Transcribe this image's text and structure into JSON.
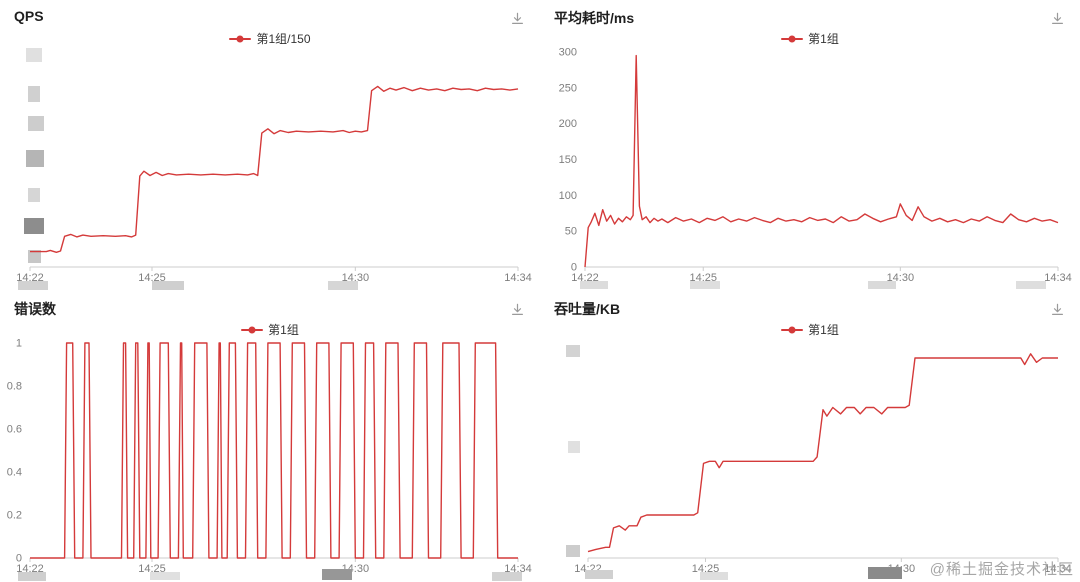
{
  "watermark": "@稀土掘金技术社区",
  "x_note": "x values are minutes after 14:22; time axis spans 14:22 to 14:34",
  "chart_data": [
    {
      "id": "qps",
      "type": "line",
      "title": "QPS",
      "series_name": "第1组/150",
      "color": "#d43a3a",
      "legend_position": "top-center",
      "grid": false,
      "xlim": [
        0,
        12
      ],
      "ylim": [
        0,
        350
      ],
      "margin_left": 30,
      "x_ticks": [
        {
          "v": 0,
          "label": "14:22"
        },
        {
          "v": 3,
          "label": "14:25"
        },
        {
          "v": 8,
          "label": "14:30"
        },
        {
          "v": 12,
          "label": "14:34"
        }
      ],
      "y_ticks": null,
      "y_axis_redacted": true,
      "points": [
        [
          0,
          25
        ],
        [
          0.4,
          25
        ],
        [
          0.5,
          27
        ],
        [
          0.65,
          24
        ],
        [
          0.75,
          26
        ],
        [
          0.85,
          50
        ],
        [
          1.0,
          53
        ],
        [
          1.15,
          49
        ],
        [
          1.3,
          52
        ],
        [
          1.5,
          50
        ],
        [
          1.8,
          51
        ],
        [
          2.1,
          50
        ],
        [
          2.35,
          51
        ],
        [
          2.5,
          49
        ],
        [
          2.6,
          52
        ],
        [
          2.7,
          148
        ],
        [
          2.8,
          156
        ],
        [
          2.95,
          149
        ],
        [
          3.1,
          154
        ],
        [
          3.25,
          149
        ],
        [
          3.4,
          152
        ],
        [
          3.6,
          150
        ],
        [
          3.9,
          151
        ],
        [
          4.2,
          150
        ],
        [
          4.5,
          151
        ],
        [
          4.8,
          150
        ],
        [
          5.1,
          151
        ],
        [
          5.35,
          150
        ],
        [
          5.5,
          152
        ],
        [
          5.6,
          149
        ],
        [
          5.7,
          218
        ],
        [
          5.85,
          225
        ],
        [
          6.0,
          217
        ],
        [
          6.15,
          222
        ],
        [
          6.35,
          219
        ],
        [
          6.55,
          221
        ],
        [
          6.85,
          220
        ],
        [
          7.15,
          221
        ],
        [
          7.45,
          220
        ],
        [
          7.7,
          222
        ],
        [
          7.85,
          219
        ],
        [
          8.0,
          221
        ],
        [
          8.15,
          220
        ],
        [
          8.3,
          222
        ],
        [
          8.4,
          287
        ],
        [
          8.55,
          294
        ],
        [
          8.7,
          286
        ],
        [
          8.85,
          291
        ],
        [
          9.0,
          288
        ],
        [
          9.2,
          292
        ],
        [
          9.4,
          287
        ],
        [
          9.6,
          291
        ],
        [
          9.8,
          288
        ],
        [
          10.0,
          290
        ],
        [
          10.2,
          287
        ],
        [
          10.4,
          291
        ],
        [
          10.6,
          289
        ],
        [
          10.8,
          290
        ],
        [
          11.0,
          287
        ],
        [
          11.2,
          291
        ],
        [
          11.4,
          289
        ],
        [
          11.6,
          290
        ],
        [
          11.8,
          288
        ],
        [
          12,
          290
        ]
      ],
      "redactions": [
        [
          26,
          48,
          16,
          14,
          "#e0e0e0"
        ],
        [
          28,
          86,
          12,
          16,
          "#d0d0d0"
        ],
        [
          28,
          116,
          16,
          15,
          "#cdcdcd"
        ],
        [
          26,
          150,
          18,
          17,
          "#b5b5b5"
        ],
        [
          28,
          188,
          12,
          14,
          "#d6d6d6"
        ],
        [
          24,
          218,
          20,
          16,
          "#8d8d8d"
        ],
        [
          28,
          250,
          13,
          13,
          "#c7c7c7"
        ],
        [
          18,
          281,
          30,
          9,
          "#d2d2d2"
        ],
        [
          152,
          281,
          32,
          9,
          "#cfcfcf"
        ],
        [
          328,
          281,
          30,
          9,
          "#d6d6d6"
        ]
      ]
    },
    {
      "id": "avg-latency",
      "type": "line",
      "title": "平均耗时/ms",
      "series_name": "第1组",
      "color": "#d43a3a",
      "legend_position": "top-center",
      "grid": false,
      "xlim": [
        0,
        12
      ],
      "ylim": [
        0,
        300
      ],
      "margin_left": 45,
      "x_ticks": [
        {
          "v": 0,
          "label": "14:22"
        },
        {
          "v": 3,
          "label": "14:25"
        },
        {
          "v": 8,
          "label": "14:30"
        },
        {
          "v": 12,
          "label": "14:34"
        }
      ],
      "y_ticks": [
        0,
        50,
        100,
        150,
        200,
        250,
        300
      ],
      "y_axis_redacted": false,
      "points": [
        [
          0,
          0
        ],
        [
          0.08,
          55
        ],
        [
          0.15,
          62
        ],
        [
          0.25,
          75
        ],
        [
          0.35,
          58
        ],
        [
          0.45,
          80
        ],
        [
          0.55,
          64
        ],
        [
          0.65,
          72
        ],
        [
          0.75,
          60
        ],
        [
          0.85,
          68
        ],
        [
          0.95,
          63
        ],
        [
          1.05,
          70
        ],
        [
          1.15,
          66
        ],
        [
          1.22,
          72
        ],
        [
          1.3,
          295
        ],
        [
          1.38,
          85
        ],
        [
          1.45,
          66
        ],
        [
          1.55,
          70
        ],
        [
          1.65,
          62
        ],
        [
          1.75,
          68
        ],
        [
          1.85,
          64
        ],
        [
          1.95,
          67
        ],
        [
          2.1,
          62
        ],
        [
          2.3,
          69
        ],
        [
          2.5,
          64
        ],
        [
          2.7,
          67
        ],
        [
          2.9,
          62
        ],
        [
          3.1,
          68
        ],
        [
          3.3,
          65
        ],
        [
          3.5,
          70
        ],
        [
          3.7,
          63
        ],
        [
          3.9,
          67
        ],
        [
          4.1,
          64
        ],
        [
          4.3,
          69
        ],
        [
          4.5,
          65
        ],
        [
          4.7,
          62
        ],
        [
          4.9,
          68
        ],
        [
          5.1,
          64
        ],
        [
          5.3,
          66
        ],
        [
          5.5,
          63
        ],
        [
          5.7,
          69
        ],
        [
          5.9,
          65
        ],
        [
          6.1,
          67
        ],
        [
          6.3,
          62
        ],
        [
          6.5,
          70
        ],
        [
          6.7,
          64
        ],
        [
          6.9,
          66
        ],
        [
          7.1,
          74
        ],
        [
          7.3,
          68
        ],
        [
          7.5,
          63
        ],
        [
          7.7,
          67
        ],
        [
          7.9,
          70
        ],
        [
          8.0,
          88
        ],
        [
          8.15,
          72
        ],
        [
          8.3,
          65
        ],
        [
          8.45,
          84
        ],
        [
          8.6,
          70
        ],
        [
          8.8,
          64
        ],
        [
          9.0,
          68
        ],
        [
          9.2,
          63
        ],
        [
          9.4,
          66
        ],
        [
          9.6,
          62
        ],
        [
          9.8,
          67
        ],
        [
          10.0,
          64
        ],
        [
          10.2,
          70
        ],
        [
          10.4,
          65
        ],
        [
          10.6,
          62
        ],
        [
          10.8,
          74
        ],
        [
          11.0,
          66
        ],
        [
          11.2,
          63
        ],
        [
          11.4,
          68
        ],
        [
          11.6,
          64
        ],
        [
          11.8,
          66
        ],
        [
          12,
          62
        ]
      ],
      "redactions": [
        [
          40,
          281,
          28,
          8,
          "#dcdcdc"
        ],
        [
          150,
          281,
          30,
          8,
          "#dedede"
        ],
        [
          328,
          281,
          28,
          8,
          "#dadada"
        ],
        [
          476,
          281,
          30,
          8,
          "#dedede"
        ]
      ]
    },
    {
      "id": "error-count",
      "type": "line",
      "title": "错误数",
      "series_name": "第1组",
      "color": "#d43a3a",
      "legend_position": "top-center",
      "grid": false,
      "xlim": [
        0,
        12
      ],
      "ylim": [
        0,
        1
      ],
      "margin_left": 30,
      "x_ticks": [
        {
          "v": 0,
          "label": "14:22"
        },
        {
          "v": 3,
          "label": "14:25"
        },
        {
          "v": 8,
          "label": "14:30"
        },
        {
          "v": 12,
          "label": "14:34"
        }
      ],
      "y_ticks": [
        0,
        0.2,
        0.4,
        0.6,
        0.8,
        1
      ],
      "y_axis_redacted": false,
      "points": [
        [
          0,
          0
        ],
        [
          0.85,
          0
        ],
        [
          0.9,
          1
        ],
        [
          1.05,
          1
        ],
        [
          1.1,
          0
        ],
        [
          1.3,
          0
        ],
        [
          1.35,
          1
        ],
        [
          1.45,
          1
        ],
        [
          1.5,
          0
        ],
        [
          2.25,
          0
        ],
        [
          2.3,
          1
        ],
        [
          2.35,
          1
        ],
        [
          2.4,
          0
        ],
        [
          2.55,
          0
        ],
        [
          2.6,
          1
        ],
        [
          2.65,
          1
        ],
        [
          2.7,
          0
        ],
        [
          2.85,
          0
        ],
        [
          2.9,
          1
        ],
        [
          2.93,
          1
        ],
        [
          2.97,
          0
        ],
        [
          3.15,
          0
        ],
        [
          3.2,
          1
        ],
        [
          3.4,
          1
        ],
        [
          3.45,
          0
        ],
        [
          3.65,
          0
        ],
        [
          3.7,
          1
        ],
        [
          3.73,
          1
        ],
        [
          3.77,
          0
        ],
        [
          4.0,
          0
        ],
        [
          4.05,
          1
        ],
        [
          4.35,
          1
        ],
        [
          4.4,
          0
        ],
        [
          4.6,
          0
        ],
        [
          4.65,
          1
        ],
        [
          4.68,
          1
        ],
        [
          4.72,
          0
        ],
        [
          4.85,
          0
        ],
        [
          4.9,
          1
        ],
        [
          5.05,
          1
        ],
        [
          5.1,
          0
        ],
        [
          5.3,
          0
        ],
        [
          5.35,
          1
        ],
        [
          5.55,
          1
        ],
        [
          5.6,
          0
        ],
        [
          5.8,
          0
        ],
        [
          5.85,
          1
        ],
        [
          6.15,
          1
        ],
        [
          6.2,
          0
        ],
        [
          6.4,
          0
        ],
        [
          6.45,
          1
        ],
        [
          6.75,
          1
        ],
        [
          6.8,
          0
        ],
        [
          7.0,
          0
        ],
        [
          7.05,
          1
        ],
        [
          7.35,
          1
        ],
        [
          7.4,
          0
        ],
        [
          7.6,
          0
        ],
        [
          7.65,
          1
        ],
        [
          7.95,
          1
        ],
        [
          8.0,
          0
        ],
        [
          8.2,
          0
        ],
        [
          8.25,
          1
        ],
        [
          8.45,
          1
        ],
        [
          8.5,
          0
        ],
        [
          8.7,
          0
        ],
        [
          8.75,
          1
        ],
        [
          9.05,
          1
        ],
        [
          9.1,
          0
        ],
        [
          9.4,
          0
        ],
        [
          9.45,
          1
        ],
        [
          9.75,
          1
        ],
        [
          9.8,
          0
        ],
        [
          10.1,
          0
        ],
        [
          10.15,
          1
        ],
        [
          10.55,
          1
        ],
        [
          10.6,
          0
        ],
        [
          10.9,
          0
        ],
        [
          10.95,
          1
        ],
        [
          11.45,
          1
        ],
        [
          11.5,
          0
        ],
        [
          12,
          0
        ]
      ],
      "redactions": [
        [
          18,
          281,
          28,
          9,
          "#cfcfcf"
        ],
        [
          150,
          281,
          30,
          8,
          "#e0e0e0"
        ],
        [
          322,
          278,
          30,
          11,
          "#979797"
        ],
        [
          492,
          281,
          30,
          9,
          "#d2d2d2"
        ]
      ]
    },
    {
      "id": "throughput",
      "type": "line",
      "title": "吞吐量/KB",
      "series_name": "第1组",
      "color": "#d43a3a",
      "legend_position": "top-center",
      "grid": false,
      "xlim": [
        0,
        12
      ],
      "ylim": [
        0,
        100
      ],
      "margin_left": 48,
      "x_ticks": [
        {
          "v": 0,
          "label": "14:22"
        },
        {
          "v": 3,
          "label": "14:25"
        },
        {
          "v": 8,
          "label": "14:30"
        },
        {
          "v": 12,
          "label": "14:34"
        }
      ],
      "y_ticks": null,
      "y_axis_redacted": true,
      "points": [
        [
          0,
          3
        ],
        [
          0.2,
          4
        ],
        [
          0.45,
          5
        ],
        [
          0.55,
          5
        ],
        [
          0.65,
          14
        ],
        [
          0.8,
          15
        ],
        [
          0.95,
          13
        ],
        [
          1.05,
          15
        ],
        [
          1.25,
          15
        ],
        [
          1.35,
          19
        ],
        [
          1.5,
          20
        ],
        [
          1.9,
          20
        ],
        [
          2.3,
          20
        ],
        [
          2.7,
          20
        ],
        [
          2.8,
          21
        ],
        [
          2.95,
          44
        ],
        [
          3.1,
          45
        ],
        [
          3.25,
          45
        ],
        [
          3.35,
          42
        ],
        [
          3.45,
          45
        ],
        [
          3.9,
          45
        ],
        [
          4.4,
          45
        ],
        [
          4.9,
          45
        ],
        [
          5.4,
          45
        ],
        [
          5.75,
          45
        ],
        [
          5.85,
          47
        ],
        [
          6.0,
          69
        ],
        [
          6.1,
          66
        ],
        [
          6.25,
          70
        ],
        [
          6.45,
          67
        ],
        [
          6.6,
          70
        ],
        [
          6.8,
          70
        ],
        [
          6.95,
          67
        ],
        [
          7.1,
          70
        ],
        [
          7.3,
          70
        ],
        [
          7.5,
          67
        ],
        [
          7.65,
          70
        ],
        [
          7.9,
          70
        ],
        [
          8.1,
          70
        ],
        [
          8.2,
          71
        ],
        [
          8.35,
          93
        ],
        [
          8.6,
          93
        ],
        [
          9.0,
          93
        ],
        [
          9.5,
          93
        ],
        [
          10.0,
          93
        ],
        [
          10.5,
          93
        ],
        [
          10.9,
          93
        ],
        [
          11.05,
          93
        ],
        [
          11.15,
          90
        ],
        [
          11.3,
          95
        ],
        [
          11.45,
          91
        ],
        [
          11.6,
          93
        ],
        [
          12,
          93
        ]
      ],
      "redactions": [
        [
          26,
          54,
          14,
          12,
          "#d3d3d3"
        ],
        [
          28,
          150,
          12,
          12,
          "#e0e0e0"
        ],
        [
          26,
          254,
          14,
          12,
          "#cccccc"
        ],
        [
          45,
          279,
          28,
          9,
          "#d0d0d0"
        ],
        [
          160,
          281,
          28,
          8,
          "#dedede"
        ],
        [
          328,
          276,
          34,
          12,
          "#8a8a8a"
        ]
      ]
    }
  ]
}
